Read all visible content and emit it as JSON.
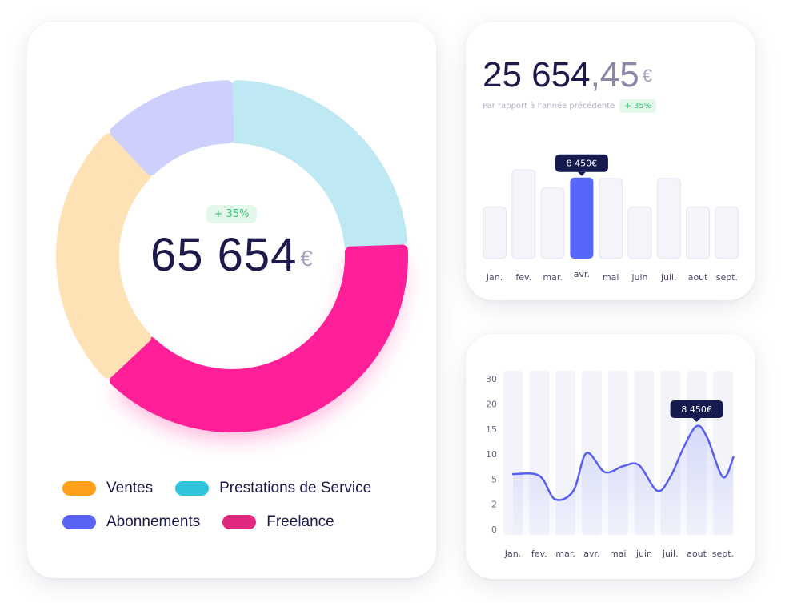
{
  "donut_card": {
    "badge": "+ 35%",
    "value": "65 654",
    "currency": "€",
    "legend": [
      {
        "label": "Ventes",
        "color": "#ff9f1a"
      },
      {
        "label": "Prestations de Service",
        "color": "#2ec5dc"
      },
      {
        "label": "Abonnements",
        "color": "#5b63f5"
      },
      {
        "label": "Freelance",
        "color": "#e0287e"
      }
    ]
  },
  "bar_card": {
    "value_int": "25 654",
    "value_dec": ",45",
    "currency": "€",
    "subtitle": "Par rapport à l'année précédente",
    "badge": "+ 35%",
    "tooltip": "8 450€"
  },
  "line_card": {
    "tooltip": "8 450€"
  },
  "chart_data": [
    {
      "type": "pie",
      "donut": true,
      "slices": [
        {
          "label": "Prestations de Service",
          "value": 22,
          "color": "#bfe9f2"
        },
        {
          "label": "Freelance",
          "value": 36,
          "color": "#ff1f99"
        },
        {
          "label": "Ventes",
          "value": 23,
          "color": "#ffe1b6"
        },
        {
          "label": "Abonnements",
          "value": 11,
          "color": "#cdd0fc"
        }
      ]
    },
    {
      "type": "bar",
      "categories": [
        "Jan.",
        "fev.",
        "mar.",
        "avr.",
        "mai",
        "juin",
        "juil.",
        "aout",
        "sept."
      ],
      "values": [
        6000,
        10300,
        8200,
        9400,
        9300,
        6000,
        9300,
        6000,
        6000
      ],
      "highlight_index": 3,
      "highlight_color": "#5566f9",
      "ylim": [
        0,
        10300
      ]
    },
    {
      "type": "line",
      "categories": [
        "Jan.",
        "fev.",
        "mar.",
        "avr.",
        "mai",
        "juin",
        "juil.",
        "aout",
        "sept."
      ],
      "yticks": [
        "0",
        "2",
        "5",
        "10",
        "15",
        "20",
        "30"
      ],
      "ylim": [
        0,
        30
      ],
      "x": [
        0,
        1,
        1.6,
        2.3,
        2.8,
        3.5,
        4.2,
        4.8,
        5.5,
        6.0,
        6.5,
        7.0,
        7.4,
        8.0,
        8.4
      ],
      "y": [
        6,
        5.7,
        2.6,
        3.6,
        10.2,
        6.4,
        7.6,
        7.8,
        3.6,
        5.5,
        11.3,
        15.6,
        13.3,
        5.4,
        9.4
      ],
      "highlight_x": 7,
      "line_color": "#5a5ff0"
    }
  ]
}
